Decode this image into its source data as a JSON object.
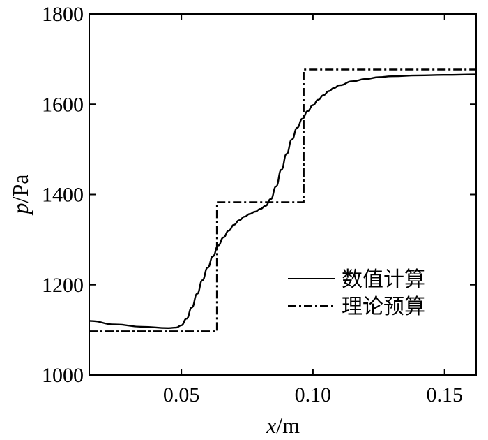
{
  "chart_data": {
    "type": "line",
    "title": "",
    "xlabel": {
      "var": "x",
      "unit": "/m"
    },
    "ylabel": {
      "var": "p",
      "unit": "/Pa"
    },
    "xlim": [
      0.015,
      0.162
    ],
    "ylim": [
      1000,
      1800
    ],
    "xticks": [
      0.05,
      0.1,
      0.15
    ],
    "xtick_labels": [
      "0.05",
      "0.10",
      "0.15"
    ],
    "yticks": [
      1000,
      1200,
      1400,
      1600,
      1800
    ],
    "ytick_labels": [
      "1000",
      "1200",
      "1400",
      "1600",
      "1800"
    ],
    "grid": false,
    "legend_position": "bottom-right",
    "series": [
      {
        "name": "数值计算",
        "style": "solid",
        "color": "#000000",
        "x": [
          0.015,
          0.025,
          0.035,
          0.045,
          0.048,
          0.05,
          0.052,
          0.054,
          0.056,
          0.058,
          0.06,
          0.062,
          0.064,
          0.066,
          0.068,
          0.07,
          0.072,
          0.074,
          0.076,
          0.078,
          0.08,
          0.082,
          0.084,
          0.086,
          0.088,
          0.09,
          0.092,
          0.094,
          0.096,
          0.098,
          0.1,
          0.102,
          0.104,
          0.106,
          0.108,
          0.11,
          0.115,
          0.12,
          0.125,
          0.13,
          0.14,
          0.15,
          0.162
        ],
        "y": [
          1120,
          1112,
          1107,
          1104,
          1105,
          1110,
          1125,
          1150,
          1180,
          1210,
          1238,
          1263,
          1287,
          1305,
          1320,
          1333,
          1343,
          1351,
          1357,
          1362,
          1368,
          1375,
          1390,
          1418,
          1455,
          1490,
          1522,
          1548,
          1568,
          1585,
          1598,
          1610,
          1620,
          1629,
          1636,
          1642,
          1651,
          1656,
          1660,
          1662,
          1664,
          1665,
          1666
        ]
      },
      {
        "name": "理论预算",
        "style": "dashdot",
        "color": "#000000",
        "x": [
          0.015,
          0.0635,
          0.0635,
          0.0965,
          0.0965,
          0.162
        ],
        "y": [
          1097,
          1097,
          1383,
          1383,
          1677,
          1677
        ]
      }
    ]
  }
}
